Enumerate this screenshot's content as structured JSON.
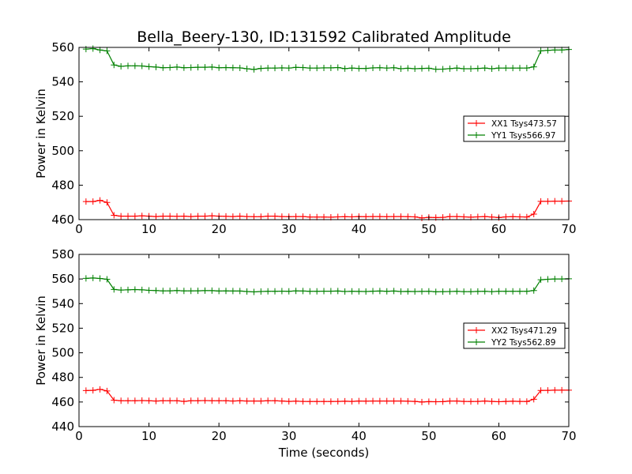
{
  "figure": {
    "title": "Bella_Beery-130, ID:131592 Calibrated Amplitude",
    "xlabel": "Time (seconds)"
  },
  "chart_data": [
    {
      "type": "line",
      "ylabel": "Power in Kelvin",
      "xlim": [
        0,
        70
      ],
      "ylim": [
        460,
        560
      ],
      "xticks": [
        "0",
        "10",
        "20",
        "30",
        "40",
        "50",
        "60",
        "70"
      ],
      "yticks": [
        "460",
        "480",
        "500",
        "520",
        "540",
        "560"
      ],
      "legend_placement": "center-right",
      "x": [
        1,
        2,
        3,
        4,
        5,
        6,
        7,
        8,
        9,
        10,
        11,
        12,
        13,
        14,
        15,
        16,
        17,
        18,
        19,
        20,
        21,
        22,
        23,
        24,
        25,
        26,
        27,
        28,
        29,
        30,
        31,
        32,
        33,
        34,
        35,
        36,
        37,
        38,
        39,
        40,
        41,
        42,
        43,
        44,
        45,
        46,
        47,
        48,
        49,
        50,
        51,
        52,
        53,
        54,
        55,
        56,
        57,
        58,
        59,
        60,
        61,
        62,
        63,
        64,
        65,
        66,
        67,
        68,
        69,
        70
      ],
      "series": [
        {
          "name": "XX1 Tsys473.57",
          "color": "#ff0000",
          "values": [
            470.5,
            470.5,
            471.2,
            470,
            462.5,
            462,
            462,
            462,
            462.2,
            462,
            461.8,
            462,
            462,
            461.9,
            462,
            461.8,
            462,
            462,
            462.2,
            462,
            461.9,
            461.8,
            462,
            461.8,
            461.7,
            461.7,
            462,
            462,
            461.8,
            461.7,
            461.8,
            461.8,
            461.5,
            461.5,
            461.5,
            461.4,
            461.6,
            461.7,
            461.6,
            461.8,
            461.7,
            461.8,
            461.8,
            461.7,
            461.8,
            461.8,
            461.7,
            461.6,
            461,
            461.3,
            461.2,
            461.3,
            461.8,
            461.8,
            461.6,
            461.4,
            461.6,
            461.8,
            461.5,
            461.2,
            461.6,
            461.7,
            461.6,
            461.5,
            463.2,
            470.6,
            470.6,
            470.7,
            470.7,
            470.8
          ]
        },
        {
          "name": "YY1 Tsys566.97",
          "color": "#008000",
          "values": [
            559,
            559.3,
            558.5,
            558,
            549.8,
            549,
            549.3,
            549.3,
            549.2,
            548.8,
            548.6,
            548.2,
            548.3,
            548.6,
            548.2,
            548.3,
            548.5,
            548.5,
            548.6,
            548.2,
            548.3,
            548.2,
            548.1,
            547.6,
            547.2,
            547.8,
            548,
            548,
            548.1,
            548,
            548.4,
            548.3,
            548,
            548,
            548.1,
            548.1,
            548.3,
            547.7,
            548,
            547.8,
            547.8,
            548.1,
            548.2,
            548,
            548.2,
            547.6,
            547.9,
            547.6,
            547.8,
            547.9,
            547.3,
            547.4,
            547.7,
            548,
            547.6,
            547.6,
            547.8,
            548,
            547.6,
            548,
            548,
            548,
            548,
            548,
            548.7,
            558,
            558.3,
            558.5,
            558.5,
            558.8
          ]
        }
      ]
    },
    {
      "type": "line",
      "ylabel": "Power in Kelvin",
      "xlim": [
        0,
        70
      ],
      "ylim": [
        440,
        580
      ],
      "xticks": [
        "0",
        "10",
        "20",
        "30",
        "40",
        "50",
        "60",
        "70"
      ],
      "yticks": [
        "440",
        "460",
        "480",
        "500",
        "520",
        "540",
        "560",
        "580"
      ],
      "legend_placement": "center-right",
      "x": [
        1,
        2,
        3,
        4,
        5,
        6,
        7,
        8,
        9,
        10,
        11,
        12,
        13,
        14,
        15,
        16,
        17,
        18,
        19,
        20,
        21,
        22,
        23,
        24,
        25,
        26,
        27,
        28,
        29,
        30,
        31,
        32,
        33,
        34,
        35,
        36,
        37,
        38,
        39,
        40,
        41,
        42,
        43,
        44,
        45,
        46,
        47,
        48,
        49,
        50,
        51,
        52,
        53,
        54,
        55,
        56,
        57,
        58,
        59,
        60,
        61,
        62,
        63,
        64,
        65,
        66,
        67,
        68,
        69,
        70
      ],
      "series": [
        {
          "name": "XX2 Tsys471.29",
          "color": "#ff0000",
          "values": [
            469.3,
            469.5,
            470.3,
            469,
            461.5,
            461,
            461,
            461,
            461.2,
            461,
            460.8,
            461,
            461,
            461,
            460.5,
            461,
            461,
            461.2,
            461,
            461,
            461,
            460.8,
            461,
            460.8,
            460.8,
            460.8,
            461,
            461,
            460.8,
            460.5,
            460.7,
            460.5,
            460.4,
            460.4,
            460.4,
            460.4,
            460.5,
            460.6,
            460.5,
            460.8,
            460.7,
            460.8,
            460.8,
            460.8,
            460.8,
            460.8,
            460.6,
            460.5,
            460,
            460.3,
            460.2,
            460.3,
            460.8,
            460.8,
            460.5,
            460.4,
            460.5,
            460.8,
            460.5,
            460.2,
            460.5,
            460.6,
            460.5,
            460.4,
            462.2,
            469.4,
            469.5,
            469.6,
            469.6,
            469.6
          ]
        },
        {
          "name": "YY2 Tsys562.89",
          "color": "#008000",
          "values": [
            560.5,
            560.8,
            560.4,
            559.8,
            551.5,
            551,
            551.2,
            551.4,
            551.2,
            550.8,
            550.6,
            550.3,
            550.4,
            550.6,
            550.3,
            550.3,
            550.4,
            550.5,
            550.5,
            550.2,
            550.3,
            550.2,
            550.2,
            549.8,
            549.5,
            549.8,
            550,
            550,
            550.1,
            550,
            550.3,
            550.2,
            550,
            550,
            550.1,
            550.1,
            550.2,
            549.8,
            550,
            549.9,
            549.8,
            550.1,
            550.2,
            550,
            550.2,
            549.8,
            549.9,
            549.8,
            549.9,
            550,
            549.6,
            549.7,
            549.8,
            550,
            549.7,
            549.7,
            549.9,
            550,
            549.7,
            550,
            550,
            550,
            550,
            550,
            550.6,
            559.4,
            559.8,
            560,
            560,
            560.2
          ]
        }
      ]
    }
  ]
}
